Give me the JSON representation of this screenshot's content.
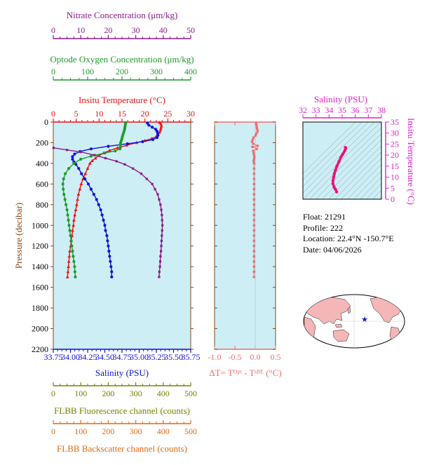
{
  "colors": {
    "nitrate": "#8b1a8b",
    "oxygen": "#1f9a2a",
    "temperature": "#ee1111",
    "salinity": "#1111dd",
    "delta_t": "#f26b6b",
    "fluorescence": "#808000",
    "backscatter": "#e06a10",
    "ts_axis": "#dd22cc",
    "ts_curve": "#ee1177",
    "panel_bg": "#cdeef5"
  },
  "info": {
    "float": "Float:  21291",
    "profile": "Profile:  222",
    "location": "Location:  22.4°N  -150.7°E",
    "date": "Date:  04/06/2026"
  },
  "chart_data": [
    {
      "type": "line",
      "panel": "main-profile",
      "ylabel": "Pressure (decibar)",
      "ylim": [
        2200,
        0
      ],
      "yticks": [
        0,
        200,
        400,
        600,
        800,
        1000,
        1200,
        1400,
        1600,
        1800,
        2000,
        2200
      ],
      "axes": {
        "nitrate": {
          "label": "Nitrate Concentration (μm/kg)",
          "range": [
            0,
            50
          ],
          "ticks": [
            0,
            10,
            20,
            30,
            40,
            50
          ]
        },
        "oxygen": {
          "label": "Optode Oxygen Concentration (μm/kg)",
          "range": [
            0,
            400
          ],
          "ticks": [
            0,
            100,
            200,
            300,
            400
          ]
        },
        "temperature": {
          "label": "Insitu Temperature (°C)",
          "range": [
            0,
            30
          ],
          "ticks": [
            0,
            5,
            10,
            15,
            20,
            25,
            30
          ]
        },
        "salinity": {
          "label": "Salinity (PSU)",
          "range": [
            33.75,
            35.75
          ],
          "ticks": [
            "33.75",
            "34.00",
            "34.25",
            "34.50",
            "34.75",
            "35.00",
            "35.25",
            "35.50",
            "35.75"
          ]
        },
        "fluorescence": {
          "label": "FLBB Fluorescence channel (counts)",
          "range": [
            0,
            500
          ],
          "ticks": [
            0,
            100,
            200,
            300,
            400,
            500
          ]
        },
        "backscatter": {
          "label": "FLBB Backscatter channel (counts)",
          "range": [
            0,
            500
          ],
          "ticks": [
            0,
            100,
            200,
            300,
            400,
            500
          ]
        }
      },
      "series": [
        {
          "key": "temperature",
          "points": [
            [
              23.2,
              5
            ],
            [
              23.5,
              20
            ],
            [
              23.6,
              40
            ],
            [
              23.5,
              60
            ],
            [
              23.4,
              80
            ],
            [
              23.2,
              100
            ],
            [
              22.9,
              120
            ],
            [
              22.5,
              140
            ],
            [
              21.5,
              160
            ],
            [
              20.0,
              180
            ],
            [
              18.2,
              200
            ],
            [
              16.0,
              225
            ],
            [
              14.0,
              250
            ],
            [
              12.3,
              275
            ],
            [
              11.0,
              300
            ],
            [
              10.0,
              325
            ],
            [
              9.2,
              350
            ],
            [
              8.5,
              375
            ],
            [
              8.0,
              400
            ],
            [
              7.5,
              450
            ],
            [
              7.0,
              500
            ],
            [
              6.5,
              550
            ],
            [
              6.1,
              600
            ],
            [
              5.8,
              650
            ],
            [
              5.5,
              700
            ],
            [
              5.3,
              750
            ],
            [
              5.1,
              800
            ],
            [
              4.9,
              850
            ],
            [
              4.7,
              900
            ],
            [
              4.5,
              950
            ],
            [
              4.4,
              1000
            ],
            [
              4.2,
              1050
            ],
            [
              4.1,
              1100
            ],
            [
              3.9,
              1150
            ],
            [
              3.8,
              1200
            ],
            [
              3.6,
              1250
            ],
            [
              3.5,
              1300
            ],
            [
              3.4,
              1350
            ],
            [
              3.3,
              1400
            ],
            [
              3.2,
              1450
            ],
            [
              3.1,
              1500
            ]
          ]
        },
        {
          "key": "salinity",
          "points": [
            [
              35.12,
              10
            ],
            [
              35.14,
              30
            ],
            [
              35.19,
              50
            ],
            [
              35.24,
              70
            ],
            [
              35.26,
              90
            ],
            [
              35.27,
              110
            ],
            [
              35.27,
              130
            ],
            [
              35.26,
              150
            ],
            [
              35.2,
              170
            ],
            [
              35.05,
              190
            ],
            [
              34.83,
              210
            ],
            [
              34.55,
              235
            ],
            [
              34.3,
              260
            ],
            [
              34.14,
              285
            ],
            [
              34.06,
              310
            ],
            [
              34.03,
              335
            ],
            [
              34.03,
              360
            ],
            [
              34.05,
              385
            ],
            [
              34.08,
              410
            ],
            [
              34.12,
              450
            ],
            [
              34.16,
              500
            ],
            [
              34.21,
              550
            ],
            [
              34.26,
              600
            ],
            [
              34.3,
              650
            ],
            [
              34.34,
              700
            ],
            [
              34.38,
              750
            ],
            [
              34.41,
              800
            ],
            [
              34.44,
              850
            ],
            [
              34.46,
              900
            ],
            [
              34.48,
              950
            ],
            [
              34.5,
              1000
            ],
            [
              34.51,
              1050
            ],
            [
              34.53,
              1100
            ],
            [
              34.54,
              1150
            ],
            [
              34.55,
              1200
            ],
            [
              34.56,
              1250
            ],
            [
              34.57,
              1300
            ],
            [
              34.58,
              1350
            ],
            [
              34.59,
              1400
            ],
            [
              34.6,
              1450
            ],
            [
              34.6,
              1500
            ]
          ]
        },
        {
          "key": "oxygen",
          "points": [
            [
              211,
              5
            ],
            [
              210,
              20
            ],
            [
              209,
              40
            ],
            [
              208,
              60
            ],
            [
              207,
              80
            ],
            [
              205,
              100
            ],
            [
              203,
              120
            ],
            [
              201,
              140
            ],
            [
              200,
              160
            ],
            [
              198,
              180
            ],
            [
              196,
              200
            ],
            [
              195,
              220
            ],
            [
              196,
              240
            ],
            [
              194,
              260
            ],
            [
              180,
              280
            ],
            [
              150,
              300
            ],
            [
              110,
              330
            ],
            [
              80,
              360
            ],
            [
              60,
              400
            ],
            [
              45,
              450
            ],
            [
              35,
              500
            ],
            [
              30,
              550
            ],
            [
              28,
              600
            ],
            [
              29,
              650
            ],
            [
              31,
              700
            ],
            [
              34,
              750
            ],
            [
              37,
              800
            ],
            [
              40,
              850
            ],
            [
              42,
              900
            ],
            [
              44,
              950
            ],
            [
              46,
              1000
            ],
            [
              48,
              1050
            ],
            [
              50,
              1100
            ],
            [
              52,
              1150
            ],
            [
              54,
              1200
            ],
            [
              56,
              1250
            ],
            [
              58,
              1300
            ],
            [
              60,
              1350
            ],
            [
              62,
              1400
            ],
            [
              63,
              1450
            ],
            [
              64,
              1500
            ]
          ]
        },
        {
          "key": "nitrate",
          "points": [
            [
              0.1,
              250
            ],
            [
              5,
              270
            ],
            [
              10,
              290
            ],
            [
              15,
              320
            ],
            [
              19,
              350
            ],
            [
              23,
              380
            ],
            [
              26,
              410
            ],
            [
              29,
              450
            ],
            [
              32,
              500
            ],
            [
              34,
              550
            ],
            [
              36,
              600
            ],
            [
              37,
              650
            ],
            [
              38,
              700
            ],
            [
              38.5,
              750
            ],
            [
              39,
              800
            ],
            [
              39.3,
              850
            ],
            [
              39.5,
              900
            ],
            [
              39.6,
              950
            ],
            [
              39.7,
              1000
            ],
            [
              39.6,
              1050
            ],
            [
              39.5,
              1100
            ],
            [
              39.4,
              1150
            ],
            [
              39.3,
              1200
            ],
            [
              39.2,
              1250
            ],
            [
              39.0,
              1300
            ],
            [
              38.9,
              1350
            ],
            [
              38.8,
              1400
            ],
            [
              38.6,
              1450
            ],
            [
              38.5,
              1500
            ]
          ]
        }
      ]
    },
    {
      "type": "scatter",
      "panel": "delta-t",
      "xlabel": "ΔT= Tᴼᵖᵗ - Tˢᴮᴱ (°C)",
      "xlim": [
        -1.0,
        0.5
      ],
      "xticks": [
        "-1.0",
        "-0.5",
        "0.0",
        "0.5"
      ],
      "ylim": [
        2200,
        0
      ],
      "points": [
        [
          0.02,
          10
        ],
        [
          0.03,
          30
        ],
        [
          0.04,
          50
        ],
        [
          0.05,
          70
        ],
        [
          0.06,
          90
        ],
        [
          0.03,
          110
        ],
        [
          0.01,
          130
        ],
        [
          -0.04,
          150
        ],
        [
          -0.06,
          170
        ],
        [
          -0.08,
          190
        ],
        [
          -0.05,
          210
        ],
        [
          0.06,
          230
        ],
        [
          -0.07,
          240
        ],
        [
          0.04,
          260
        ],
        [
          -0.05,
          280
        ],
        [
          -0.04,
          300
        ],
        [
          -0.03,
          320
        ],
        [
          -0.02,
          340
        ],
        [
          -0.03,
          360
        ],
        [
          -0.04,
          380
        ],
        [
          -0.03,
          400
        ],
        [
          -0.03,
          450
        ],
        [
          -0.03,
          500
        ],
        [
          -0.03,
          550
        ],
        [
          -0.03,
          600
        ],
        [
          -0.03,
          650
        ],
        [
          -0.03,
          700
        ],
        [
          -0.03,
          750
        ],
        [
          -0.03,
          800
        ],
        [
          -0.03,
          850
        ],
        [
          -0.03,
          900
        ],
        [
          -0.03,
          950
        ],
        [
          -0.03,
          1000
        ],
        [
          -0.03,
          1050
        ],
        [
          -0.03,
          1100
        ],
        [
          -0.03,
          1150
        ],
        [
          -0.03,
          1200
        ],
        [
          -0.03,
          1250
        ],
        [
          -0.03,
          1300
        ],
        [
          -0.03,
          1350
        ],
        [
          -0.03,
          1400
        ],
        [
          -0.03,
          1450
        ],
        [
          -0.03,
          1500
        ]
      ]
    },
    {
      "type": "line",
      "panel": "ts-diagram",
      "xlabel": "Salinity (PSU)",
      "xlim": [
        32,
        38
      ],
      "xticks": [
        32,
        33,
        34,
        35,
        36,
        37,
        38
      ],
      "ylabel": "Insitu Temperature (°C)",
      "ylim": [
        0,
        35
      ],
      "yticks": [
        0,
        5,
        10,
        15,
        20,
        25,
        30,
        35
      ],
      "points": [
        [
          35.25,
          23.5
        ],
        [
          35.27,
          23.0
        ],
        [
          35.2,
          22.0
        ],
        [
          35.05,
          20.5
        ],
        [
          34.9,
          19.0
        ],
        [
          34.75,
          17.0
        ],
        [
          34.6,
          15.0
        ],
        [
          34.48,
          13.0
        ],
        [
          34.4,
          11.5
        ],
        [
          34.35,
          10.0
        ],
        [
          34.3,
          8.5
        ],
        [
          34.3,
          7.0
        ],
        [
          34.38,
          5.5
        ],
        [
          34.48,
          4.5
        ],
        [
          34.58,
          3.3
        ]
      ]
    }
  ],
  "map": {
    "marker_lon": -150.7,
    "marker_lat": 22.4
  }
}
